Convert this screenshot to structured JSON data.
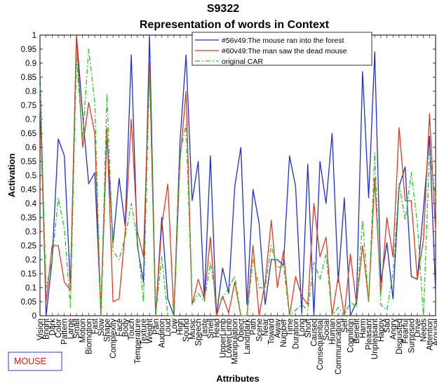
{
  "chart_data": {
    "type": "line",
    "title": "S9322",
    "subtitle": "Representation of words in Context",
    "xlabel": "Attributes",
    "ylabel": "Activation",
    "ylim": [
      0,
      1
    ],
    "yticks": [
      "0",
      "0.05",
      "0.1",
      "0.15",
      "0.2",
      "0.25",
      "0.3",
      "0.35",
      "0.4",
      "0.45",
      "0.5",
      "0.55",
      "0.6",
      "0.65",
      "0.7",
      "0.75",
      "0.8",
      "0.85",
      "0.9",
      "0.95",
      "1"
    ],
    "grid": false,
    "legend_position": "top-right",
    "categories": [
      "Vision",
      "Bright",
      "Dark",
      "Color",
      "Pattern",
      "Large",
      "Small",
      "Motion",
      "Biomotion",
      "Fast",
      "Slow",
      "Shape",
      "Complexity",
      "Face",
      "Body",
      "Touch",
      "Temperature",
      "Texture",
      "Weight",
      "Pain",
      "Audition",
      "Loud",
      "Low",
      "High",
      "Sound",
      "Music",
      "Speech",
      "Taste",
      "Smell",
      "Head",
      "UpperLimb",
      "LowerLimb",
      "Manipulation",
      "Object",
      "Landmark",
      "Path",
      "Scene",
      "Near",
      "Toward",
      "Away",
      "Number",
      "Time",
      "Duration",
      "Long",
      "Short",
      "Caused",
      "Consequential",
      "Social",
      "Human",
      "Communication",
      "Self",
      "Cognition",
      "Benefit",
      "Harm",
      "Pleasant",
      "Unpleasant",
      "Happy",
      "Sad",
      "Angry",
      "Disgusted",
      "Fearful",
      "Surprised",
      "Drive",
      "Needs",
      "Attention",
      "Arousal"
    ],
    "series": [
      {
        "name": "#56v49:The mouse ran into the forest",
        "color": "#1f2fd0",
        "style": "solid",
        "values": [
          0.86,
          0.0,
          0.2,
          0.63,
          0.57,
          0.1,
          1.0,
          0.72,
          0.47,
          0.51,
          0.02,
          0.65,
          0.26,
          0.49,
          0.32,
          0.93,
          0.25,
          0.12,
          1.0,
          0.0,
          0.35,
          0.06,
          0.0,
          0.62,
          0.93,
          0.41,
          0.55,
          0.06,
          0.57,
          0.0,
          0.17,
          0.08,
          0.46,
          0.6,
          0.04,
          0.45,
          0.33,
          0.04,
          0.2,
          0.2,
          0.18,
          0.57,
          0.46,
          0.01,
          0.54,
          0.0,
          0.55,
          0.4,
          0.65,
          0.12,
          0.42,
          0.0,
          0.05,
          0.87,
          0.42,
          0.94,
          0.12,
          0.26,
          0.06,
          0.46,
          0.53,
          0.14,
          0.13,
          0.38,
          0.64,
          0.08
        ]
      },
      {
        "name": "#60v49:The man saw the dead mouse",
        "color": "#e03a20",
        "style": "solid",
        "values": [
          0.76,
          0.05,
          0.25,
          0.25,
          0.12,
          0.09,
          1.0,
          0.6,
          0.76,
          0.65,
          0.0,
          0.67,
          0.05,
          0.06,
          0.3,
          0.7,
          0.3,
          0.21,
          0.9,
          0.0,
          0.32,
          0.47,
          0.0,
          0.55,
          0.8,
          0.04,
          0.13,
          0.06,
          0.28,
          0.0,
          0.07,
          0.01,
          0.12,
          0.0,
          0.0,
          0.25,
          0.0,
          0.12,
          0.34,
          0.1,
          0.23,
          0.0,
          0.14,
          0.07,
          0.04,
          0.4,
          0.21,
          0.28,
          0.0,
          0.14,
          0.0,
          0.22,
          0.04,
          0.25,
          0.05,
          0.49,
          0.08,
          0.35,
          0.21,
          0.67,
          0.41,
          0.41,
          0.13,
          0.27,
          0.72,
          0.3
        ]
      },
      {
        "name": "original CAR",
        "color": "#1ec81e",
        "style": "dashdot",
        "values": [
          0.82,
          0.1,
          0.2,
          0.42,
          0.31,
          0.03,
          0.92,
          0.63,
          0.95,
          0.76,
          0.0,
          0.79,
          0.23,
          0.2,
          0.28,
          0.4,
          0.27,
          0.05,
          0.87,
          0.0,
          0.21,
          0.0,
          0.0,
          0.58,
          0.68,
          0.04,
          0.08,
          0.05,
          0.19,
          0.05,
          0.06,
          0.1,
          0.14,
          0.0,
          0.0,
          0.2,
          0.1,
          0.1,
          0.25,
          0.17,
          0.18,
          0.0,
          0.02,
          0.04,
          0.02,
          0.19,
          0.13,
          0.22,
          0.0,
          0.03,
          0.0,
          0.05,
          0.03,
          0.34,
          0.05,
          0.58,
          0.04,
          0.02,
          0.15,
          0.47,
          0.34,
          0.51,
          0.33,
          0.0,
          0.59,
          0.42
        ]
      }
    ]
  },
  "word_box": {
    "text": "MOUSE",
    "color": "#e01818",
    "border": "#2a3fd8"
  }
}
